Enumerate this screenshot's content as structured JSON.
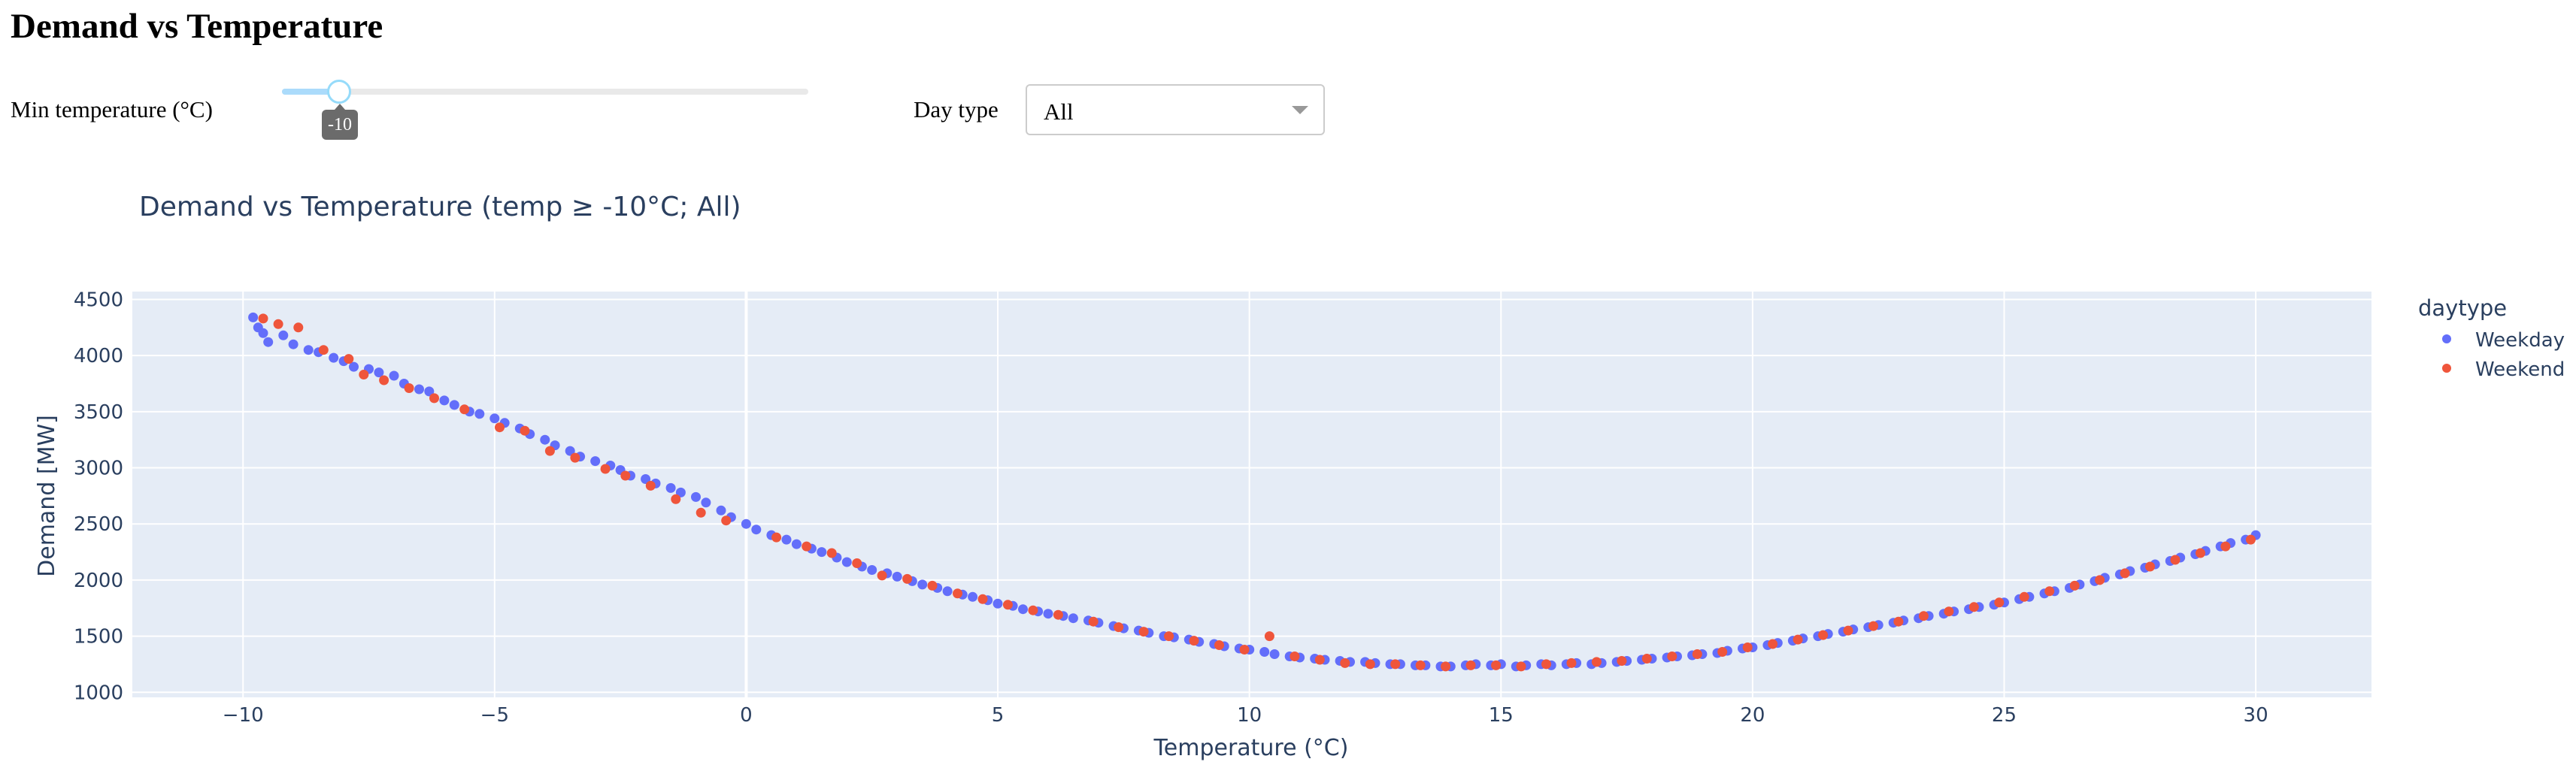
{
  "page": {
    "title": "Demand vs Temperature"
  },
  "controls": {
    "slider": {
      "label": "Min temperature (°C)",
      "value": -10,
      "min": -10,
      "max": 30,
      "tooltip": "-10"
    },
    "daytype": {
      "label": "Day type",
      "value": "All"
    }
  },
  "colors": {
    "weekday": "#636efa",
    "weekend": "#ef553b",
    "plot_bg": "#e5ecf6",
    "text": "#2a3f5f",
    "accent": "#96dbfa"
  },
  "chart_data": {
    "type": "scatter",
    "title": "Demand vs Temperature (temp ≥ -10°C; All)",
    "xlabel": "Temperature (°C)",
    "ylabel": "Demand [MW]",
    "xlim": [
      -12.2,
      32.3
    ],
    "ylim": [
      955,
      4570
    ],
    "xticks": [
      -10,
      -5,
      0,
      5,
      10,
      15,
      20,
      25,
      30
    ],
    "yticks": [
      1000,
      1500,
      2000,
      2500,
      3000,
      3500,
      4000,
      4500
    ],
    "grid": true,
    "legend": {
      "title": "daytype",
      "placement": "top-right",
      "entries": [
        "Weekday",
        "Weekend"
      ]
    },
    "series": [
      {
        "name": "Weekday",
        "color": "#636efa",
        "points": [
          [
            -9.8,
            4340
          ],
          [
            -9.7,
            4250
          ],
          [
            -9.6,
            4200
          ],
          [
            -9.5,
            4120
          ],
          [
            -9.2,
            4180
          ],
          [
            -9.0,
            4100
          ],
          [
            -8.7,
            4050
          ],
          [
            -8.5,
            4030
          ],
          [
            -8.2,
            3980
          ],
          [
            -8.0,
            3950
          ],
          [
            -7.8,
            3900
          ],
          [
            -7.5,
            3880
          ],
          [
            -7.3,
            3850
          ],
          [
            -7.0,
            3820
          ],
          [
            -6.8,
            3750
          ],
          [
            -6.5,
            3700
          ],
          [
            -6.3,
            3680
          ],
          [
            -6.0,
            3600
          ],
          [
            -5.8,
            3560
          ],
          [
            -5.5,
            3500
          ],
          [
            -5.3,
            3480
          ],
          [
            -5.0,
            3440
          ],
          [
            -4.8,
            3400
          ],
          [
            -4.5,
            3350
          ],
          [
            -4.3,
            3300
          ],
          [
            -4.0,
            3250
          ],
          [
            -3.8,
            3200
          ],
          [
            -3.5,
            3150
          ],
          [
            -3.3,
            3100
          ],
          [
            -3.0,
            3060
          ],
          [
            -2.7,
            3020
          ],
          [
            -2.5,
            2980
          ],
          [
            -2.3,
            2930
          ],
          [
            -2.0,
            2900
          ],
          [
            -1.8,
            2860
          ],
          [
            -1.5,
            2820
          ],
          [
            -1.3,
            2780
          ],
          [
            -1.0,
            2740
          ],
          [
            -0.8,
            2690
          ],
          [
            -0.5,
            2620
          ],
          [
            -0.3,
            2560
          ],
          [
            0.0,
            2500
          ],
          [
            0.2,
            2450
          ],
          [
            0.5,
            2400
          ],
          [
            0.8,
            2360
          ],
          [
            1.0,
            2320
          ],
          [
            1.3,
            2280
          ],
          [
            1.5,
            2250
          ],
          [
            1.8,
            2200
          ],
          [
            2.0,
            2160
          ],
          [
            2.3,
            2120
          ],
          [
            2.5,
            2090
          ],
          [
            2.8,
            2060
          ],
          [
            3.0,
            2030
          ],
          [
            3.3,
            1990
          ],
          [
            3.5,
            1960
          ],
          [
            3.8,
            1930
          ],
          [
            4.0,
            1900
          ],
          [
            4.3,
            1870
          ],
          [
            4.5,
            1850
          ],
          [
            4.8,
            1820
          ],
          [
            5.0,
            1790
          ],
          [
            5.3,
            1770
          ],
          [
            5.5,
            1740
          ],
          [
            5.8,
            1720
          ],
          [
            6.0,
            1700
          ],
          [
            6.3,
            1680
          ],
          [
            6.5,
            1660
          ],
          [
            6.8,
            1640
          ],
          [
            7.0,
            1620
          ],
          [
            7.3,
            1590
          ],
          [
            7.5,
            1570
          ],
          [
            7.8,
            1550
          ],
          [
            8.0,
            1530
          ],
          [
            8.3,
            1500
          ],
          [
            8.5,
            1490
          ],
          [
            8.8,
            1470
          ],
          [
            9.0,
            1450
          ],
          [
            9.3,
            1430
          ],
          [
            9.5,
            1410
          ],
          [
            9.8,
            1390
          ],
          [
            10.0,
            1380
          ],
          [
            10.3,
            1360
          ],
          [
            10.5,
            1340
          ],
          [
            10.8,
            1320
          ],
          [
            11.0,
            1310
          ],
          [
            11.3,
            1300
          ],
          [
            11.5,
            1290
          ],
          [
            11.8,
            1280
          ],
          [
            12.0,
            1270
          ],
          [
            12.3,
            1270
          ],
          [
            12.5,
            1260
          ],
          [
            12.8,
            1250
          ],
          [
            13.0,
            1250
          ],
          [
            13.3,
            1240
          ],
          [
            13.5,
            1240
          ],
          [
            13.8,
            1230
          ],
          [
            14.0,
            1230
          ],
          [
            14.3,
            1240
          ],
          [
            14.5,
            1250
          ],
          [
            14.8,
            1240
          ],
          [
            15.0,
            1250
          ],
          [
            15.3,
            1230
          ],
          [
            15.5,
            1240
          ],
          [
            15.8,
            1250
          ],
          [
            16.0,
            1240
          ],
          [
            16.3,
            1250
          ],
          [
            16.5,
            1260
          ],
          [
            16.8,
            1250
          ],
          [
            17.0,
            1260
          ],
          [
            17.3,
            1270
          ],
          [
            17.5,
            1280
          ],
          [
            17.8,
            1290
          ],
          [
            18.0,
            1300
          ],
          [
            18.3,
            1310
          ],
          [
            18.5,
            1320
          ],
          [
            18.8,
            1330
          ],
          [
            19.0,
            1340
          ],
          [
            19.3,
            1350
          ],
          [
            19.5,
            1370
          ],
          [
            19.8,
            1390
          ],
          [
            20.0,
            1400
          ],
          [
            20.3,
            1420
          ],
          [
            20.5,
            1440
          ],
          [
            20.8,
            1460
          ],
          [
            21.0,
            1480
          ],
          [
            21.3,
            1500
          ],
          [
            21.5,
            1520
          ],
          [
            21.8,
            1540
          ],
          [
            22.0,
            1560
          ],
          [
            22.3,
            1580
          ],
          [
            22.5,
            1600
          ],
          [
            22.8,
            1620
          ],
          [
            23.0,
            1640
          ],
          [
            23.3,
            1660
          ],
          [
            23.5,
            1680
          ],
          [
            23.8,
            1700
          ],
          [
            24.0,
            1720
          ],
          [
            24.3,
            1740
          ],
          [
            24.5,
            1760
          ],
          [
            24.8,
            1780
          ],
          [
            25.0,
            1800
          ],
          [
            25.3,
            1830
          ],
          [
            25.5,
            1850
          ],
          [
            25.8,
            1880
          ],
          [
            26.0,
            1900
          ],
          [
            26.3,
            1930
          ],
          [
            26.5,
            1960
          ],
          [
            26.8,
            1990
          ],
          [
            27.0,
            2020
          ],
          [
            27.3,
            2050
          ],
          [
            27.5,
            2080
          ],
          [
            27.8,
            2110
          ],
          [
            28.0,
            2140
          ],
          [
            28.3,
            2170
          ],
          [
            28.5,
            2200
          ],
          [
            28.8,
            2230
          ],
          [
            29.0,
            2260
          ],
          [
            29.3,
            2300
          ],
          [
            29.5,
            2330
          ],
          [
            29.8,
            2360
          ],
          [
            30.0,
            2400
          ]
        ]
      },
      {
        "name": "Weekend",
        "color": "#ef553b",
        "points": [
          [
            -9.6,
            4330
          ],
          [
            -9.3,
            4280
          ],
          [
            -8.9,
            4250
          ],
          [
            -8.4,
            4050
          ],
          [
            -7.9,
            3970
          ],
          [
            -7.6,
            3830
          ],
          [
            -7.2,
            3780
          ],
          [
            -6.7,
            3710
          ],
          [
            -6.2,
            3620
          ],
          [
            -5.6,
            3520
          ],
          [
            -4.9,
            3360
          ],
          [
            -4.4,
            3330
          ],
          [
            -3.9,
            3150
          ],
          [
            -3.4,
            3090
          ],
          [
            -2.8,
            2990
          ],
          [
            -2.4,
            2930
          ],
          [
            -1.9,
            2840
          ],
          [
            -1.4,
            2720
          ],
          [
            -0.9,
            2600
          ],
          [
            -0.4,
            2530
          ],
          [
            0.6,
            2380
          ],
          [
            1.2,
            2300
          ],
          [
            1.7,
            2240
          ],
          [
            2.2,
            2150
          ],
          [
            2.7,
            2040
          ],
          [
            3.2,
            2010
          ],
          [
            3.7,
            1950
          ],
          [
            4.2,
            1880
          ],
          [
            4.7,
            1830
          ],
          [
            5.2,
            1780
          ],
          [
            5.7,
            1730
          ],
          [
            6.2,
            1690
          ],
          [
            6.9,
            1630
          ],
          [
            7.4,
            1580
          ],
          [
            7.9,
            1540
          ],
          [
            8.4,
            1500
          ],
          [
            8.9,
            1460
          ],
          [
            9.4,
            1420
          ],
          [
            9.9,
            1380
          ],
          [
            10.4,
            1500
          ],
          [
            10.9,
            1320
          ],
          [
            11.4,
            1290
          ],
          [
            11.9,
            1260
          ],
          [
            12.4,
            1250
          ],
          [
            12.9,
            1250
          ],
          [
            13.4,
            1240
          ],
          [
            13.9,
            1230
          ],
          [
            14.4,
            1240
          ],
          [
            14.9,
            1240
          ],
          [
            15.4,
            1230
          ],
          [
            15.9,
            1250
          ],
          [
            16.4,
            1260
          ],
          [
            16.9,
            1270
          ],
          [
            17.4,
            1280
          ],
          [
            17.9,
            1300
          ],
          [
            18.4,
            1320
          ],
          [
            18.9,
            1340
          ],
          [
            19.4,
            1360
          ],
          [
            19.9,
            1400
          ],
          [
            20.4,
            1430
          ],
          [
            20.9,
            1470
          ],
          [
            21.4,
            1510
          ],
          [
            21.9,
            1550
          ],
          [
            22.4,
            1590
          ],
          [
            22.9,
            1630
          ],
          [
            23.4,
            1680
          ],
          [
            23.9,
            1720
          ],
          [
            24.4,
            1760
          ],
          [
            24.9,
            1800
          ],
          [
            25.4,
            1850
          ],
          [
            25.9,
            1900
          ],
          [
            26.4,
            1950
          ],
          [
            26.9,
            2000
          ],
          [
            27.4,
            2060
          ],
          [
            27.9,
            2120
          ],
          [
            28.4,
            2180
          ],
          [
            28.9,
            2240
          ],
          [
            29.4,
            2300
          ],
          [
            29.9,
            2360
          ]
        ]
      }
    ]
  }
}
